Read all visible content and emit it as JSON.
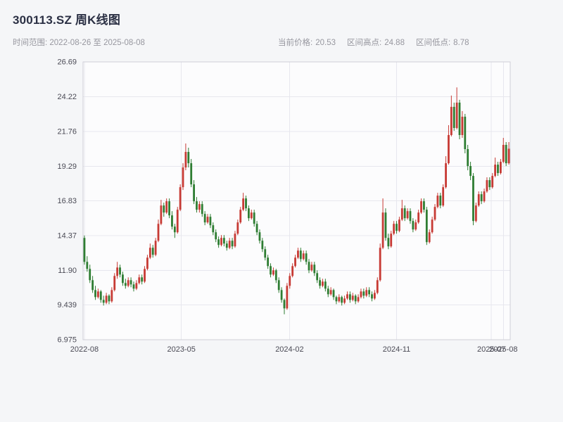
{
  "header": {
    "title": "300113.SZ 周K线图",
    "subtitle": "时间范围: 2022-08-26 至 2025-08-08",
    "stats": [
      {
        "label": "当前价格:",
        "value": "20.53"
      },
      {
        "label": "区间高点:",
        "value": "24.88"
      },
      {
        "label": "区间低点:",
        "value": "8.78"
      }
    ]
  },
  "chart_data": {
    "type": "candlestick",
    "symbol": "300113.SZ",
    "period": "weekly",
    "title": "300113.SZ 周K线图",
    "date_range": [
      "2022-08-26",
      "2025-08-08"
    ],
    "current_price": 20.53,
    "range_high": 24.88,
    "range_low": 8.78,
    "ylim": [
      6.975,
      26.69
    ],
    "grid": true,
    "colors": {
      "up": "#c73a34",
      "down": "#2e7d32",
      "plot_bg": "#fcfcfd",
      "grid": "#e7e7ee",
      "spine": "#cfcfd7",
      "title": "#2b3044",
      "muted_text": "#97979f"
    },
    "yticks": [
      {
        "label": "6.975",
        "value": 6.975
      },
      {
        "label": "9.439",
        "value": 9.439
      },
      {
        "label": "11.90",
        "value": 11.9
      },
      {
        "label": "14.37",
        "value": 14.37
      },
      {
        "label": "16.83",
        "value": 16.83
      },
      {
        "label": "19.29",
        "value": 19.29
      },
      {
        "label": "21.76",
        "value": 21.76
      },
      {
        "label": "24.22",
        "value": 24.22
      },
      {
        "label": "26.69",
        "value": 26.69
      }
    ],
    "xticks": [
      {
        "label": "2022-08",
        "week": 0
      },
      {
        "label": "2023-05",
        "week": 35.4
      },
      {
        "label": "2024-02",
        "week": 74.9
      },
      {
        "label": "2024-11",
        "week": 114
      },
      {
        "label": "2025-07",
        "week": 148.6
      },
      {
        "label": "2025-08",
        "week": 153
      }
    ],
    "candles": [
      [
        14.2,
        14.37,
        12.3,
        12.5
      ],
      [
        12.5,
        12.9,
        11.8,
        12.0
      ],
      [
        12.0,
        12.3,
        11.0,
        11.2
      ],
      [
        11.2,
        11.5,
        10.3,
        10.5
      ],
      [
        10.5,
        10.8,
        9.8,
        10.0
      ],
      [
        10.0,
        10.6,
        9.9,
        10.4
      ],
      [
        10.4,
        10.5,
        9.6,
        9.8
      ],
      [
        9.8,
        10.1,
        9.4,
        9.6
      ],
      [
        9.6,
        10.3,
        9.5,
        10.1
      ],
      [
        10.1,
        10.2,
        9.5,
        9.7
      ],
      [
        9.7,
        10.7,
        9.6,
        10.5
      ],
      [
        10.5,
        11.7,
        10.4,
        11.5
      ],
      [
        11.5,
        12.5,
        11.3,
        12.1
      ],
      [
        12.1,
        12.3,
        11.4,
        11.6
      ],
      [
        11.6,
        11.8,
        10.8,
        11.0
      ],
      [
        11.0,
        11.3,
        10.6,
        10.8
      ],
      [
        10.8,
        11.4,
        10.7,
        11.2
      ],
      [
        11.2,
        11.4,
        10.7,
        10.9
      ],
      [
        10.9,
        11.1,
        10.4,
        10.6
      ],
      [
        10.6,
        11.2,
        10.5,
        11.0
      ],
      [
        11.0,
        11.6,
        10.9,
        11.4
      ],
      [
        11.4,
        11.6,
        10.9,
        11.1
      ],
      [
        11.1,
        12.2,
        11.0,
        12.0
      ],
      [
        12.0,
        13.0,
        11.9,
        12.8
      ],
      [
        12.8,
        13.8,
        12.7,
        13.5
      ],
      [
        13.5,
        13.7,
        12.8,
        13.0
      ],
      [
        13.0,
        14.2,
        12.9,
        14.0
      ],
      [
        14.0,
        15.5,
        13.9,
        15.2
      ],
      [
        15.2,
        16.9,
        15.1,
        16.5
      ],
      [
        16.5,
        16.7,
        15.7,
        16.0
      ],
      [
        16.0,
        17.0,
        15.9,
        16.8
      ],
      [
        16.8,
        17.0,
        15.6,
        15.8
      ],
      [
        15.8,
        16.1,
        14.8,
        15.0
      ],
      [
        15.0,
        15.2,
        14.2,
        14.6
      ],
      [
        14.6,
        16.4,
        14.5,
        16.2
      ],
      [
        16.2,
        18.0,
        16.1,
        17.8
      ],
      [
        17.8,
        19.5,
        17.6,
        19.2
      ],
      [
        19.2,
        20.9,
        19.0,
        20.3
      ],
      [
        20.3,
        20.6,
        19.2,
        19.5
      ],
      [
        19.5,
        19.8,
        17.8,
        18.0
      ],
      [
        18.0,
        18.3,
        16.6,
        16.8
      ],
      [
        16.8,
        17.1,
        16.0,
        16.2
      ],
      [
        16.2,
        16.8,
        16.0,
        16.6
      ],
      [
        16.6,
        16.8,
        15.7,
        15.9
      ],
      [
        15.9,
        16.1,
        15.1,
        15.3
      ],
      [
        15.3,
        15.9,
        15.2,
        15.7
      ],
      [
        15.7,
        15.9,
        14.9,
        15.1
      ],
      [
        15.1,
        15.3,
        14.4,
        14.6
      ],
      [
        14.6,
        14.8,
        13.9,
        14.1
      ],
      [
        14.1,
        14.3,
        13.5,
        13.7
      ],
      [
        13.7,
        14.4,
        13.6,
        14.2
      ],
      [
        14.2,
        14.4,
        13.6,
        13.8
      ],
      [
        13.8,
        14.0,
        13.3,
        13.5
      ],
      [
        13.5,
        14.2,
        13.4,
        14.0
      ],
      [
        14.0,
        14.2,
        13.4,
        13.6
      ],
      [
        13.6,
        14.7,
        13.5,
        14.5
      ],
      [
        14.5,
        15.5,
        14.4,
        15.3
      ],
      [
        15.3,
        16.4,
        15.2,
        16.2
      ],
      [
        16.2,
        17.4,
        16.1,
        17.0
      ],
      [
        17.0,
        17.2,
        16.1,
        16.3
      ],
      [
        16.3,
        16.5,
        15.4,
        15.6
      ],
      [
        15.6,
        16.2,
        15.5,
        16.0
      ],
      [
        16.0,
        16.2,
        15.0,
        15.2
      ],
      [
        15.2,
        15.4,
        14.4,
        14.6
      ],
      [
        14.6,
        14.8,
        13.8,
        14.0
      ],
      [
        14.0,
        14.2,
        13.2,
        13.4
      ],
      [
        13.4,
        13.6,
        12.6,
        12.8
      ],
      [
        12.8,
        13.0,
        12.0,
        12.2
      ],
      [
        12.2,
        12.4,
        11.4,
        11.6
      ],
      [
        11.6,
        12.1,
        11.5,
        11.9
      ],
      [
        11.9,
        12.0,
        11.0,
        11.2
      ],
      [
        11.2,
        11.4,
        10.3,
        10.5
      ],
      [
        10.5,
        10.7,
        9.6,
        9.8
      ],
      [
        9.8,
        9.9,
        8.78,
        9.2
      ],
      [
        9.2,
        11.0,
        9.1,
        10.8
      ],
      [
        10.8,
        11.7,
        10.6,
        11.5
      ],
      [
        11.5,
        12.4,
        11.4,
        12.2
      ],
      [
        12.2,
        13.0,
        12.1,
        12.8
      ],
      [
        12.8,
        13.5,
        12.7,
        13.3
      ],
      [
        13.3,
        13.5,
        12.5,
        12.7
      ],
      [
        12.7,
        13.3,
        12.6,
        13.1
      ],
      [
        13.1,
        13.3,
        12.3,
        12.5
      ],
      [
        12.5,
        12.7,
        11.7,
        11.9
      ],
      [
        11.9,
        12.5,
        11.8,
        12.3
      ],
      [
        12.3,
        12.5,
        11.5,
        11.7
      ],
      [
        11.7,
        11.9,
        11.0,
        11.2
      ],
      [
        11.2,
        11.4,
        10.6,
        10.8
      ],
      [
        10.8,
        11.3,
        10.7,
        11.1
      ],
      [
        11.1,
        11.3,
        10.4,
        10.6
      ],
      [
        10.6,
        10.8,
        10.0,
        10.2
      ],
      [
        10.2,
        10.7,
        10.1,
        10.5
      ],
      [
        10.5,
        10.6,
        9.8,
        10.0
      ],
      [
        10.0,
        10.1,
        9.5,
        9.7
      ],
      [
        9.7,
        10.2,
        9.6,
        10.0
      ],
      [
        10.0,
        10.1,
        9.4,
        9.6
      ],
      [
        9.6,
        10.1,
        9.5,
        9.9
      ],
      [
        9.9,
        10.4,
        9.8,
        10.2
      ],
      [
        10.2,
        10.4,
        9.6,
        9.8
      ],
      [
        9.8,
        10.3,
        9.7,
        10.1
      ],
      [
        10.1,
        10.2,
        9.5,
        9.7
      ],
      [
        9.7,
        10.2,
        9.6,
        10.0
      ],
      [
        10.0,
        10.6,
        9.9,
        10.4
      ],
      [
        10.4,
        10.6,
        9.9,
        10.1
      ],
      [
        10.1,
        10.7,
        10.0,
        10.5
      ],
      [
        10.5,
        10.7,
        10.0,
        10.2
      ],
      [
        10.2,
        10.4,
        9.7,
        9.9
      ],
      [
        9.9,
        10.5,
        9.8,
        10.3
      ],
      [
        10.3,
        11.4,
        10.2,
        11.2
      ],
      [
        11.2,
        13.8,
        11.1,
        13.5
      ],
      [
        13.5,
        17.0,
        13.4,
        16.0
      ],
      [
        16.0,
        16.3,
        14.0,
        14.2
      ],
      [
        14.2,
        14.5,
        13.4,
        13.6
      ],
      [
        13.6,
        14.7,
        13.5,
        14.5
      ],
      [
        14.5,
        15.4,
        14.4,
        15.2
      ],
      [
        15.2,
        15.4,
        14.5,
        14.7
      ],
      [
        14.7,
        15.7,
        14.6,
        15.5
      ],
      [
        15.5,
        16.9,
        15.4,
        16.3
      ],
      [
        16.3,
        16.5,
        15.4,
        15.6
      ],
      [
        15.6,
        16.3,
        15.5,
        16.1
      ],
      [
        16.1,
        16.3,
        15.2,
        15.4
      ],
      [
        15.4,
        15.6,
        14.6,
        14.8
      ],
      [
        14.8,
        15.5,
        14.7,
        15.3
      ],
      [
        15.3,
        16.2,
        15.2,
        16.0
      ],
      [
        16.0,
        17.0,
        15.9,
        16.8
      ],
      [
        16.8,
        17.0,
        16.0,
        16.2
      ],
      [
        16.2,
        16.4,
        13.7,
        13.9
      ],
      [
        13.9,
        14.8,
        13.8,
        14.6
      ],
      [
        14.6,
        15.7,
        14.5,
        15.5
      ],
      [
        15.5,
        16.6,
        15.4,
        16.4
      ],
      [
        16.4,
        17.4,
        16.3,
        17.2
      ],
      [
        17.2,
        17.4,
        16.3,
        16.5
      ],
      [
        16.5,
        18.0,
        16.4,
        17.8
      ],
      [
        17.8,
        20.0,
        17.7,
        19.5
      ],
      [
        19.5,
        22.2,
        19.4,
        21.5
      ],
      [
        21.5,
        24.3,
        21.4,
        23.5
      ],
      [
        23.5,
        23.8,
        21.8,
        22.0
      ],
      [
        22.0,
        24.88,
        21.9,
        23.8
      ],
      [
        23.8,
        24.0,
        21.2,
        21.5
      ],
      [
        21.5,
        23.2,
        21.3,
        22.8
      ],
      [
        22.8,
        23.0,
        20.2,
        20.5
      ],
      [
        20.5,
        20.8,
        19.0,
        19.3
      ],
      [
        19.3,
        19.6,
        18.3,
        18.6
      ],
      [
        18.6,
        18.8,
        15.1,
        15.4
      ],
      [
        15.4,
        16.7,
        15.3,
        16.5
      ],
      [
        16.5,
        17.5,
        16.4,
        17.3
      ],
      [
        17.3,
        17.5,
        16.6,
        16.8
      ],
      [
        16.8,
        17.7,
        16.7,
        17.5
      ],
      [
        17.5,
        18.5,
        17.4,
        18.3
      ],
      [
        18.3,
        18.5,
        17.6,
        17.8
      ],
      [
        17.8,
        18.8,
        17.7,
        18.6
      ],
      [
        18.6,
        19.9,
        18.5,
        19.4
      ],
      [
        19.4,
        19.6,
        18.6,
        18.8
      ],
      [
        18.8,
        19.8,
        18.7,
        19.6
      ],
      [
        19.6,
        21.3,
        19.5,
        20.8
      ],
      [
        20.8,
        21.0,
        19.3,
        19.5
      ],
      [
        19.5,
        21.0,
        19.4,
        20.53
      ]
    ]
  }
}
